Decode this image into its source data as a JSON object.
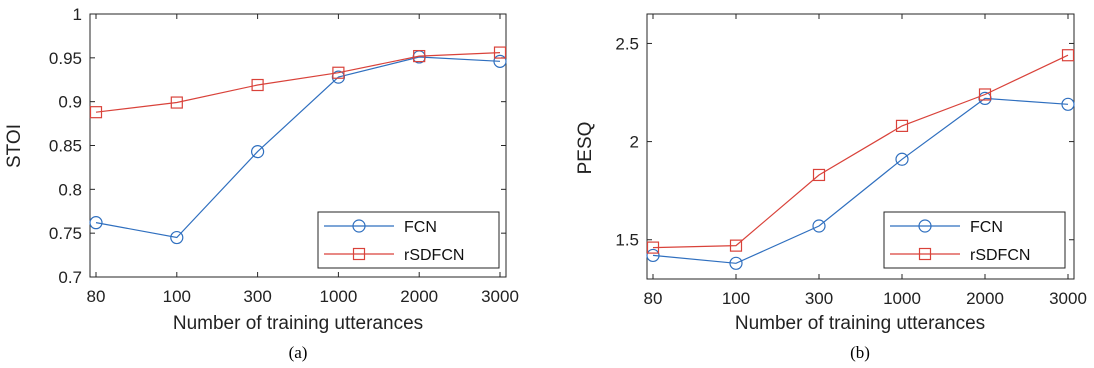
{
  "chart_data": [
    {
      "type": "line",
      "panel_label": "(a)",
      "title": "",
      "xlabel": "Number of training utterances",
      "ylabel": "STOI",
      "categories": [
        "80",
        "100",
        "300",
        "1000",
        "2000",
        "3000"
      ],
      "ylim": [
        0.7,
        1.0
      ],
      "yticks": [
        "0.7",
        "0.75",
        "0.8",
        "0.85",
        "0.9",
        "0.95",
        "1"
      ],
      "grid": false,
      "legend_position": "bottom-right",
      "series": [
        {
          "name": "FCN",
          "color": "#2f6fbf",
          "marker": "circle",
          "values": [
            0.762,
            0.745,
            0.843,
            0.928,
            0.951,
            0.946
          ]
        },
        {
          "name": "rSDFCN",
          "color": "#d9423a",
          "marker": "square",
          "values": [
            0.888,
            0.899,
            0.919,
            0.933,
            0.952,
            0.956
          ]
        }
      ]
    },
    {
      "type": "line",
      "panel_label": "(b)",
      "title": "",
      "xlabel": "Number of training utterances",
      "ylabel": "PESQ",
      "categories": [
        "80",
        "100",
        "300",
        "1000",
        "2000",
        "3000"
      ],
      "ylim": [
        1.3,
        2.65
      ],
      "yticks": [
        "1.5",
        "2",
        "2.5"
      ],
      "grid": false,
      "legend_position": "bottom-right",
      "series": [
        {
          "name": "FCN",
          "color": "#2f6fbf",
          "marker": "circle",
          "values": [
            1.42,
            1.38,
            1.57,
            1.91,
            2.22,
            2.19
          ]
        },
        {
          "name": "rSDFCN",
          "color": "#d9423a",
          "marker": "square",
          "values": [
            1.46,
            1.47,
            1.83,
            2.08,
            2.24,
            2.44
          ]
        }
      ]
    }
  ]
}
